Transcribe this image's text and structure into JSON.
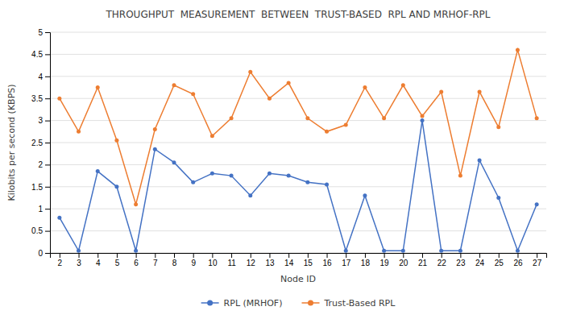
{
  "chart_data": {
    "type": "line",
    "title": "THROUGHPUT  MEASUREMENT  BETWEEN  TRUST-BASED  RPL AND MRHOF-RPL",
    "xlabel": "Node ID",
    "ylabel": "Kilobits per second (KBPS)",
    "x": [
      2,
      3,
      4,
      5,
      6,
      7,
      8,
      9,
      10,
      11,
      12,
      13,
      14,
      15,
      16,
      17,
      18,
      19,
      20,
      21,
      22,
      23,
      24,
      25,
      26,
      27
    ],
    "series": [
      {
        "name": "RPL (MRHOF)",
        "color": "#4472C4",
        "marker": "circle",
        "line_style": "solid",
        "values": [
          0.8,
          0.05,
          1.85,
          1.5,
          0.05,
          2.35,
          2.05,
          1.6,
          1.8,
          1.75,
          1.3,
          1.8,
          1.75,
          1.6,
          1.55,
          0.05,
          1.3,
          0.05,
          0.05,
          3.0,
          0.05,
          0.05,
          2.1,
          1.25,
          0.05,
          1.1
        ]
      },
      {
        "name": "Trust-Based RPL",
        "color": "#ED7D31",
        "marker": "circle",
        "line_style": "solid",
        "values": [
          3.5,
          2.75,
          3.75,
          2.55,
          1.1,
          2.8,
          3.8,
          3.6,
          2.65,
          3.05,
          4.1,
          3.5,
          3.85,
          3.05,
          2.75,
          2.9,
          3.75,
          3.05,
          3.8,
          3.1,
          3.65,
          1.75,
          3.65,
          2.85,
          4.6,
          3.05
        ]
      }
    ],
    "xlim": [
      1.5,
      27.5
    ],
    "xticks": [
      2,
      3,
      4,
      5,
      6,
      7,
      8,
      9,
      10,
      11,
      12,
      13,
      14,
      15,
      16,
      17,
      18,
      19,
      20,
      21,
      22,
      23,
      24,
      25,
      26,
      27
    ],
    "ylim": [
      0,
      5
    ],
    "yticks": [
      0,
      0.5,
      1,
      1.5,
      2,
      2.5,
      3,
      3.5,
      4,
      4.5,
      5
    ],
    "grid": true,
    "legend": "bottom"
  }
}
